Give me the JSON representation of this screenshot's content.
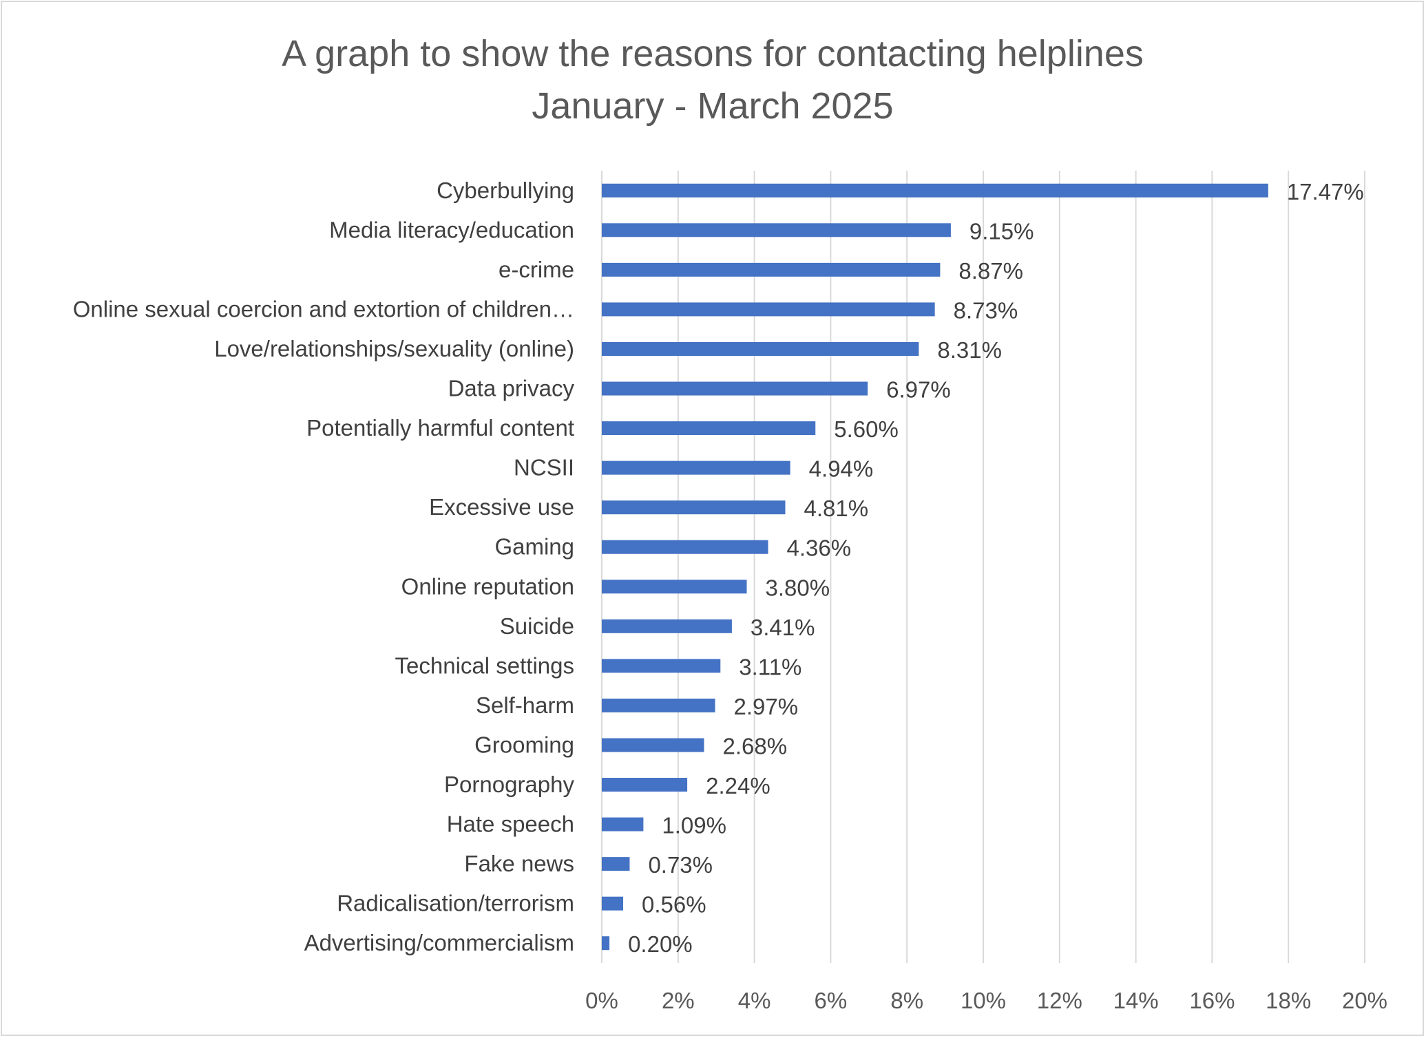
{
  "chart_data": {
    "type": "bar",
    "orientation": "horizontal",
    "title": [
      "A graph to show the reasons for contacting helplines",
      "January - March 2025"
    ],
    "categories": [
      "Cyberbullying",
      "Media literacy/education",
      "e-crime",
      "Online sexual coercion and extortion of children…",
      "Love/relationships/sexuality (online)",
      "Data privacy",
      "Potentially harmful content",
      "NCSII",
      "Excessive use",
      "Gaming",
      "Online reputation",
      "Suicide",
      "Technical settings",
      "Self-harm",
      "Grooming",
      "Pornography",
      "Hate speech",
      "Fake news",
      "Radicalisation/terrorism",
      "Advertising/commercialism"
    ],
    "values": [
      17.47,
      9.15,
      8.87,
      8.73,
      8.31,
      6.97,
      5.6,
      4.94,
      4.81,
      4.36,
      3.8,
      3.41,
      3.11,
      2.97,
      2.68,
      2.24,
      1.09,
      0.73,
      0.56,
      0.2
    ],
    "data_labels": [
      "17.47%",
      "9.15%",
      "8.87%",
      "8.73%",
      "8.31%",
      "6.97%",
      "5.60%",
      "4.94%",
      "4.81%",
      "4.36%",
      "3.80%",
      "3.41%",
      "3.11%",
      "2.97%",
      "2.68%",
      "2.24%",
      "1.09%",
      "0.73%",
      "0.56%",
      "0.20%"
    ],
    "xlim": [
      0,
      20
    ],
    "xticks": [
      0,
      2,
      4,
      6,
      8,
      10,
      12,
      14,
      16,
      18,
      20
    ],
    "xtick_labels": [
      "0%",
      "2%",
      "4%",
      "6%",
      "8%",
      "10%",
      "12%",
      "14%",
      "16%",
      "18%",
      "20%"
    ],
    "xlabel": "",
    "ylabel": "",
    "grid": "vertical",
    "legend": "none",
    "bar_color": "#4472c4"
  }
}
